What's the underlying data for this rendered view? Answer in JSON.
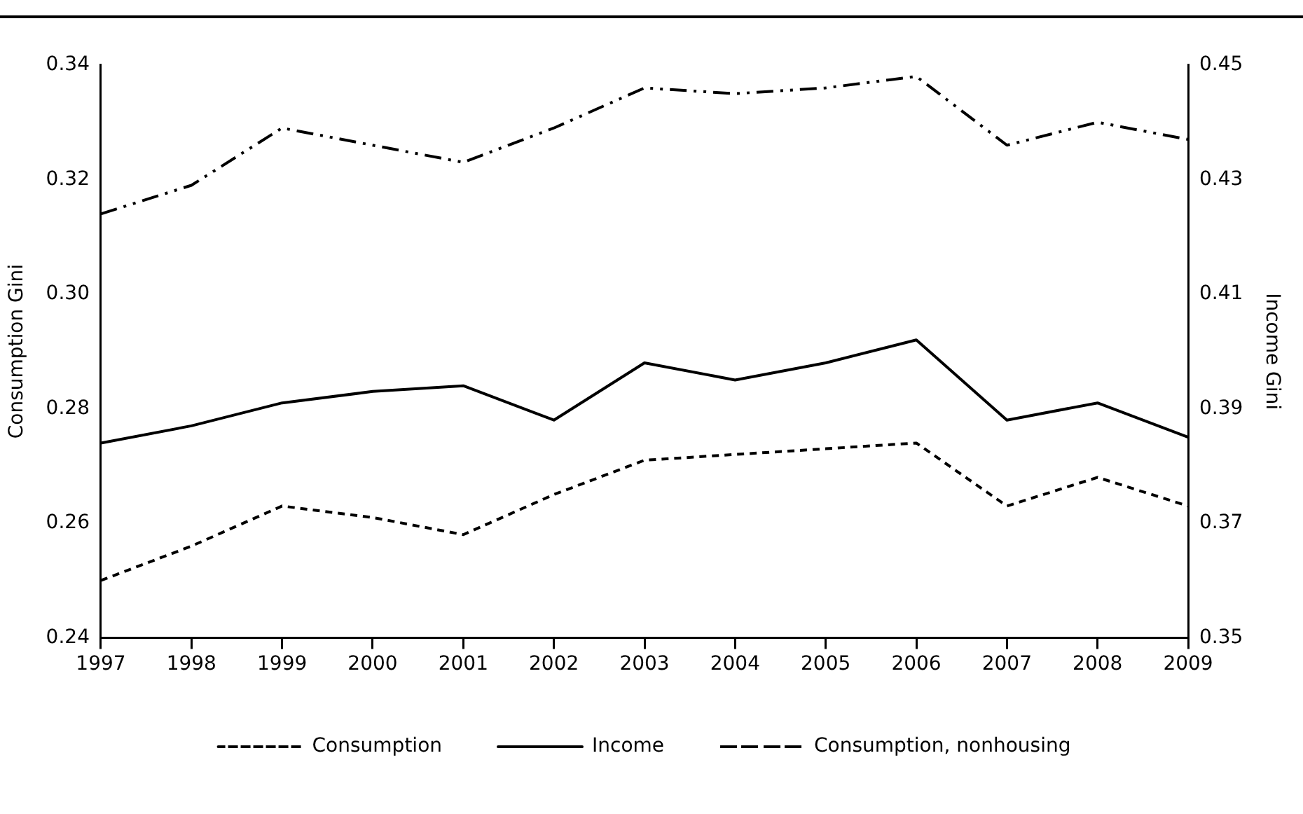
{
  "chart_data": {
    "type": "line",
    "ylabel": "Consumption Gini",
    "y2label": "Income Gini",
    "categories": [
      "1997",
      "1998",
      "1999",
      "2000",
      "2001",
      "2002",
      "2003",
      "2004",
      "2005",
      "2006",
      "2007",
      "2008",
      "2009"
    ],
    "ylim": [
      0.24,
      0.34
    ],
    "yticks": [
      {
        "value": 0.24,
        "label": "0.24"
      },
      {
        "value": 0.26,
        "label": "0.26"
      },
      {
        "value": 0.28,
        "label": "0.28"
      },
      {
        "value": 0.3,
        "label": "0.30"
      },
      {
        "value": 0.32,
        "label": "0.32"
      },
      {
        "value": 0.34,
        "label": "0.34"
      }
    ],
    "y2lim": [
      0.35,
      0.45
    ],
    "y2ticks": [
      {
        "value": 0.35,
        "label": "0.35"
      },
      {
        "value": 0.37,
        "label": "0.37"
      },
      {
        "value": 0.39,
        "label": "0.39"
      },
      {
        "value": 0.41,
        "label": "0.41"
      },
      {
        "value": 0.43,
        "label": "0.43"
      },
      {
        "value": 0.45,
        "label": "0.45"
      }
    ],
    "grid": false,
    "legend": "bottom",
    "marker": "none",
    "series": [
      {
        "name": "Consumption",
        "color": "#000000",
        "line_style": "dashed",
        "values": [
          0.25,
          0.256,
          0.263,
          0.261,
          0.258,
          0.265,
          0.271,
          0.272,
          0.273,
          0.274,
          0.263,
          0.268,
          0.263
        ]
      },
      {
        "name": "Income",
        "color": "#000000",
        "line_style": "solid",
        "axis": "y2",
        "values": [
          0.384,
          0.387,
          0.391,
          0.393,
          0.394,
          0.388,
          0.398,
          0.395,
          0.398,
          0.402,
          0.388,
          0.391,
          0.385
        ]
      },
      {
        "name": "Consumption, nonhousing",
        "color": "#000000",
        "line_style": "dashdot",
        "values": [
          0.314,
          0.319,
          0.329,
          0.326,
          0.323,
          0.329,
          0.336,
          0.335,
          0.336,
          0.338,
          0.326,
          0.33,
          0.327
        ]
      }
    ]
  }
}
